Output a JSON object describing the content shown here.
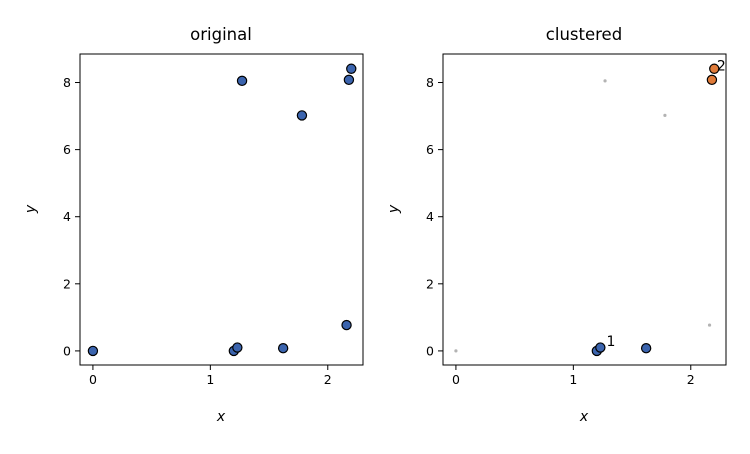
{
  "chart_data": [
    {
      "type": "scatter",
      "title": "original",
      "xlabel": "x",
      "ylabel": "y",
      "xlim": [
        -0.11,
        2.3
      ],
      "ylim": [
        -0.42,
        8.85
      ],
      "xticks": [
        0,
        1,
        2
      ],
      "yticks": [
        0,
        2,
        4,
        6,
        8
      ],
      "xtick_labels": [
        "0",
        "1",
        "2"
      ],
      "ytick_labels": [
        "0",
        "2",
        "4",
        "6",
        "8"
      ],
      "grid": false,
      "series": [
        {
          "color": "#3b64ae",
          "points": [
            {
              "x": 0.0,
              "y": 0.0
            },
            {
              "x": 1.2,
              "y": 0.0
            },
            {
              "x": 1.23,
              "y": 0.1
            },
            {
              "x": 1.62,
              "y": 0.08
            },
            {
              "x": 2.16,
              "y": 0.77
            },
            {
              "x": 1.27,
              "y": 8.05
            },
            {
              "x": 1.78,
              "y": 7.02
            },
            {
              "x": 2.18,
              "y": 8.08
            },
            {
              "x": 2.2,
              "y": 8.41
            }
          ]
        }
      ]
    },
    {
      "type": "scatter",
      "title": "clustered",
      "xlabel": "x",
      "ylabel": "y",
      "xlim": [
        -0.11,
        2.3
      ],
      "ylim": [
        -0.42,
        8.85
      ],
      "xticks": [
        0,
        1,
        2
      ],
      "yticks": [
        0,
        2,
        4,
        6,
        8
      ],
      "xtick_labels": [
        "0",
        "1",
        "2"
      ],
      "ytick_labels": [
        "0",
        "2",
        "4",
        "6",
        "8"
      ],
      "grid": false,
      "series": [
        {
          "color": "#3b64ae",
          "label": "1",
          "label_at": {
            "x": 1.32,
            "y": 0.3
          },
          "points": [
            {
              "x": 1.2,
              "y": 0.0
            },
            {
              "x": 1.23,
              "y": 0.1
            },
            {
              "x": 1.62,
              "y": 0.08
            }
          ]
        },
        {
          "color": "#e07b39",
          "label": "2",
          "label_at": {
            "x": 2.26,
            "y": 8.5
          },
          "points": [
            {
              "x": 2.18,
              "y": 8.08
            },
            {
              "x": 2.2,
              "y": 8.41
            }
          ]
        },
        {
          "color": "#b3b3b3",
          "noise": true,
          "points": [
            {
              "x": 0.0,
              "y": 0.0
            },
            {
              "x": 1.27,
              "y": 8.05
            },
            {
              "x": 1.78,
              "y": 7.02
            },
            {
              "x": 2.16,
              "y": 0.77
            }
          ]
        }
      ]
    }
  ]
}
